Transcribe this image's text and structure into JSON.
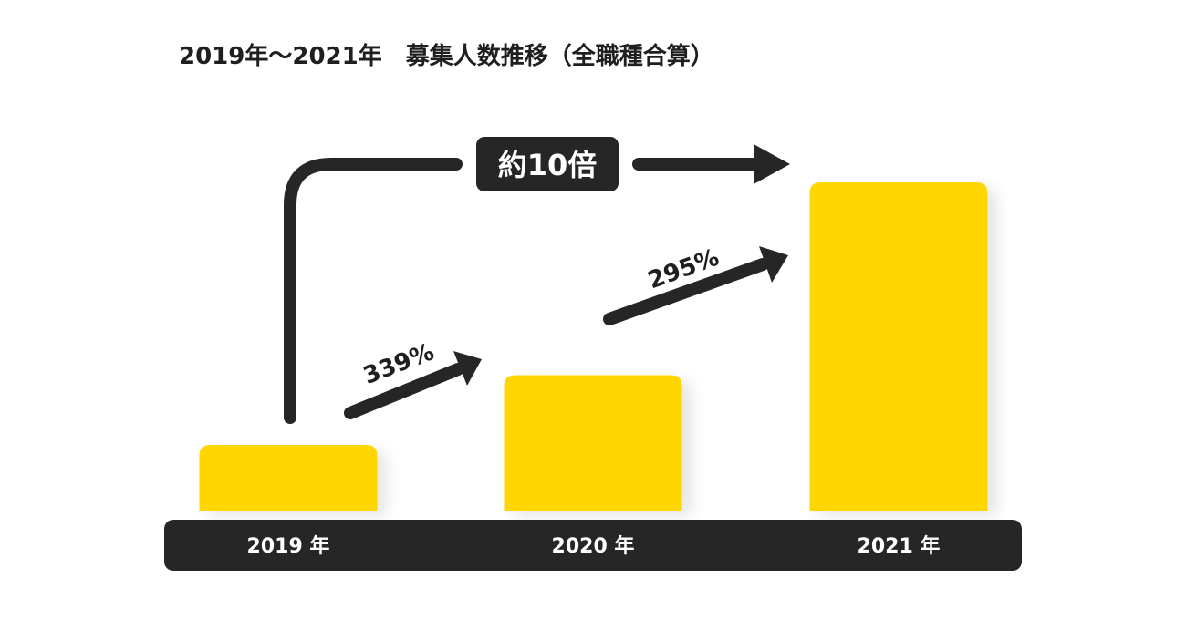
{
  "chart_data": {
    "type": "bar",
    "title": "2019年〜2021年　募集人数推移（全職種合算）",
    "categories": [
      "2019 年",
      "2020 年",
      "2021 年"
    ],
    "values": [
      1,
      3.39,
      10
    ],
    "ylim": [
      0,
      10
    ],
    "grid": false,
    "legend": "none",
    "bar_color": "#FFD600",
    "axis_band_color": "#262626",
    "annotations": {
      "growth_2019_2020": "339%",
      "growth_2020_2021": "295%",
      "overall": "約10倍"
    }
  }
}
